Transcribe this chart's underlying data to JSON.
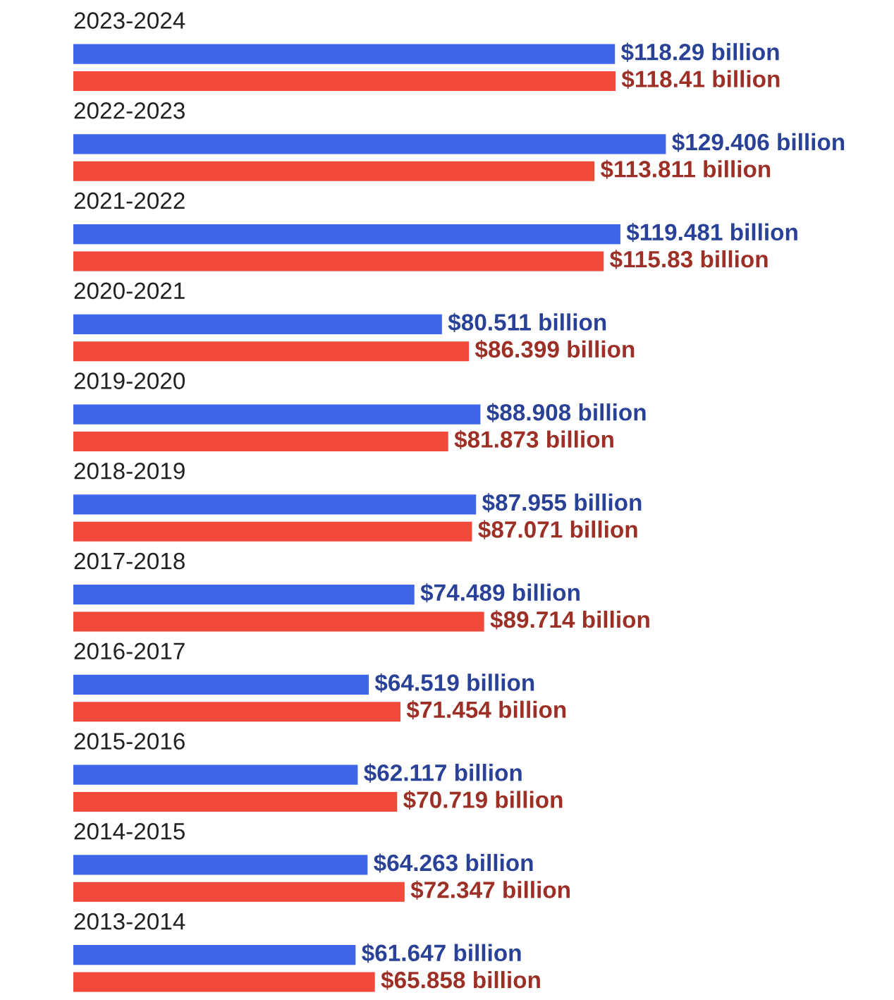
{
  "chart_data": {
    "type": "bar",
    "orientation": "horizontal",
    "legend": false,
    "categories": [
      "2023-2024",
      "2022-2023",
      "2021-2022",
      "2020-2021",
      "2019-2020",
      "2018-2019",
      "2017-2018",
      "2016-2017",
      "2015-2016",
      "2014-2015",
      "2013-2014"
    ],
    "series": [
      {
        "color": "#3f66e8",
        "values": [
          118.29,
          129.406,
          119.481,
          80.511,
          88.908,
          87.955,
          74.489,
          64.519,
          62.117,
          64.263,
          61.647
        ],
        "value_labels": [
          "$118.29 billion",
          "$129.406 billion",
          "$119.481 billion",
          "$80.511 billion",
          "$88.908 billion",
          "$87.955 billion",
          "$74.489 billion",
          "$64.519 billion",
          "$62.117 billion",
          "$64.263 billion",
          "$61.647 billion"
        ]
      },
      {
        "color": "#f24a3a",
        "values": [
          118.41,
          113.811,
          115.83,
          86.399,
          81.873,
          87.071,
          89.714,
          71.454,
          70.719,
          72.347,
          65.858
        ],
        "value_labels": [
          "$118.41 billion",
          "$113.811 billion",
          "$115.83 billion",
          "$86.399 billion",
          "$81.873 billion",
          "$87.071 billion",
          "$89.714 billion",
          "$71.454 billion",
          "$70.719 billion",
          "$72.347 billion",
          "$65.858 billion"
        ]
      }
    ]
  }
}
